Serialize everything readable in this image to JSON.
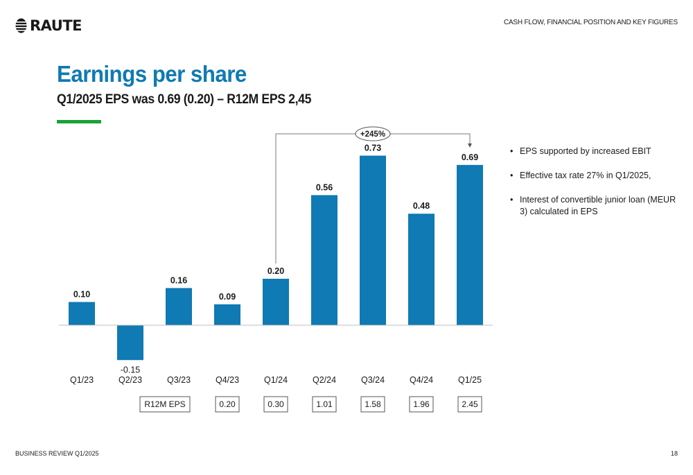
{
  "header": {
    "logo_text": "RAUTE",
    "section_label": "CASH FLOW, FINANCIAL POSITION AND KEY FIGURES"
  },
  "slide": {
    "title": "Earnings per share",
    "subtitle": "Q1/2025 EPS was 0.69 (0.20) – R12M EPS 2,45"
  },
  "colors": {
    "bar": "#0f7ab3",
    "title": "#0f7ab3",
    "accent": "#1aa33a"
  },
  "chart_data": {
    "type": "bar",
    "categories": [
      "Q1/23",
      "Q2/23",
      "Q3/23",
      "Q4/23",
      "Q1/24",
      "Q2/24",
      "Q3/24",
      "Q4/24",
      "Q1/25"
    ],
    "values": [
      0.1,
      -0.15,
      0.16,
      0.09,
      0.2,
      0.56,
      0.73,
      0.48,
      0.69
    ],
    "value_labels": [
      "0.10",
      "-0.15",
      "0.16",
      "0.09",
      "0.20",
      "0.56",
      "0.73",
      "0.48",
      "0.69"
    ],
    "ylim": [
      -0.15,
      0.73
    ],
    "grid": false,
    "legend": "none",
    "annotation": {
      "label": "+245%",
      "from_category": "Q1/24",
      "to_category": "Q1/25"
    },
    "r12m": {
      "label": "R12M EPS",
      "categories": [
        "Q4/23",
        "Q1/24",
        "Q2/24",
        "Q3/24",
        "Q4/24",
        "Q1/25"
      ],
      "values": [
        "0.20",
        "0.30",
        "1.01",
        "1.58",
        "1.96",
        "2.45"
      ]
    }
  },
  "bullets": [
    "EPS supported by increased EBIT",
    "Effective tax rate 27% in Q1/2025,",
    "Interest of convertible junior loan (MEUR 3) calculated in EPS"
  ],
  "footer": {
    "left": "BUSINESS REVIEW Q1/2025",
    "page_number": "18"
  }
}
